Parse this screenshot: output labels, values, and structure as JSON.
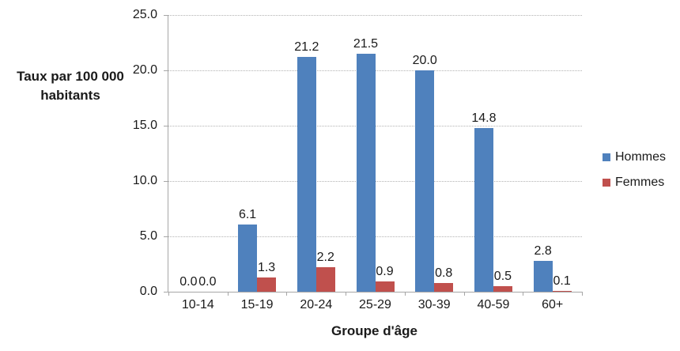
{
  "chart_data": {
    "type": "bar",
    "categories": [
      "10-14",
      "15-19",
      "20-24",
      "25-29",
      "30-39",
      "40-59",
      "60+"
    ],
    "series": [
      {
        "name": "Hommes",
        "color": "#4F81BD",
        "values": [
          0.0,
          6.1,
          21.2,
          21.5,
          20.0,
          14.8,
          2.8
        ],
        "labels": [
          "0.0",
          "6.1",
          "21.2",
          "21.5",
          "20.0",
          "14.8",
          "2.8"
        ]
      },
      {
        "name": "Femmes",
        "color": "#C0504D",
        "values": [
          0.0,
          1.3,
          2.2,
          0.9,
          0.8,
          0.5,
          0.1
        ],
        "labels": [
          "0.0",
          "1.3",
          "2.2",
          "0.9",
          "0.8",
          "0.5",
          "0.1"
        ]
      }
    ],
    "ylabel": "Taux par 100 000\nhabitants",
    "xlabel": "Groupe d'âge",
    "ylim": [
      0,
      25
    ],
    "ytick_step": 5,
    "ytick_labels": [
      "0.0",
      "5.0",
      "10.0",
      "15.0",
      "20.0",
      "25.0"
    ],
    "grid": true,
    "legend_position": "right",
    "colors": {
      "axis_line": "#a6a6a6",
      "gridline": "#b3b3b3",
      "text": "#1a1a1a"
    }
  }
}
